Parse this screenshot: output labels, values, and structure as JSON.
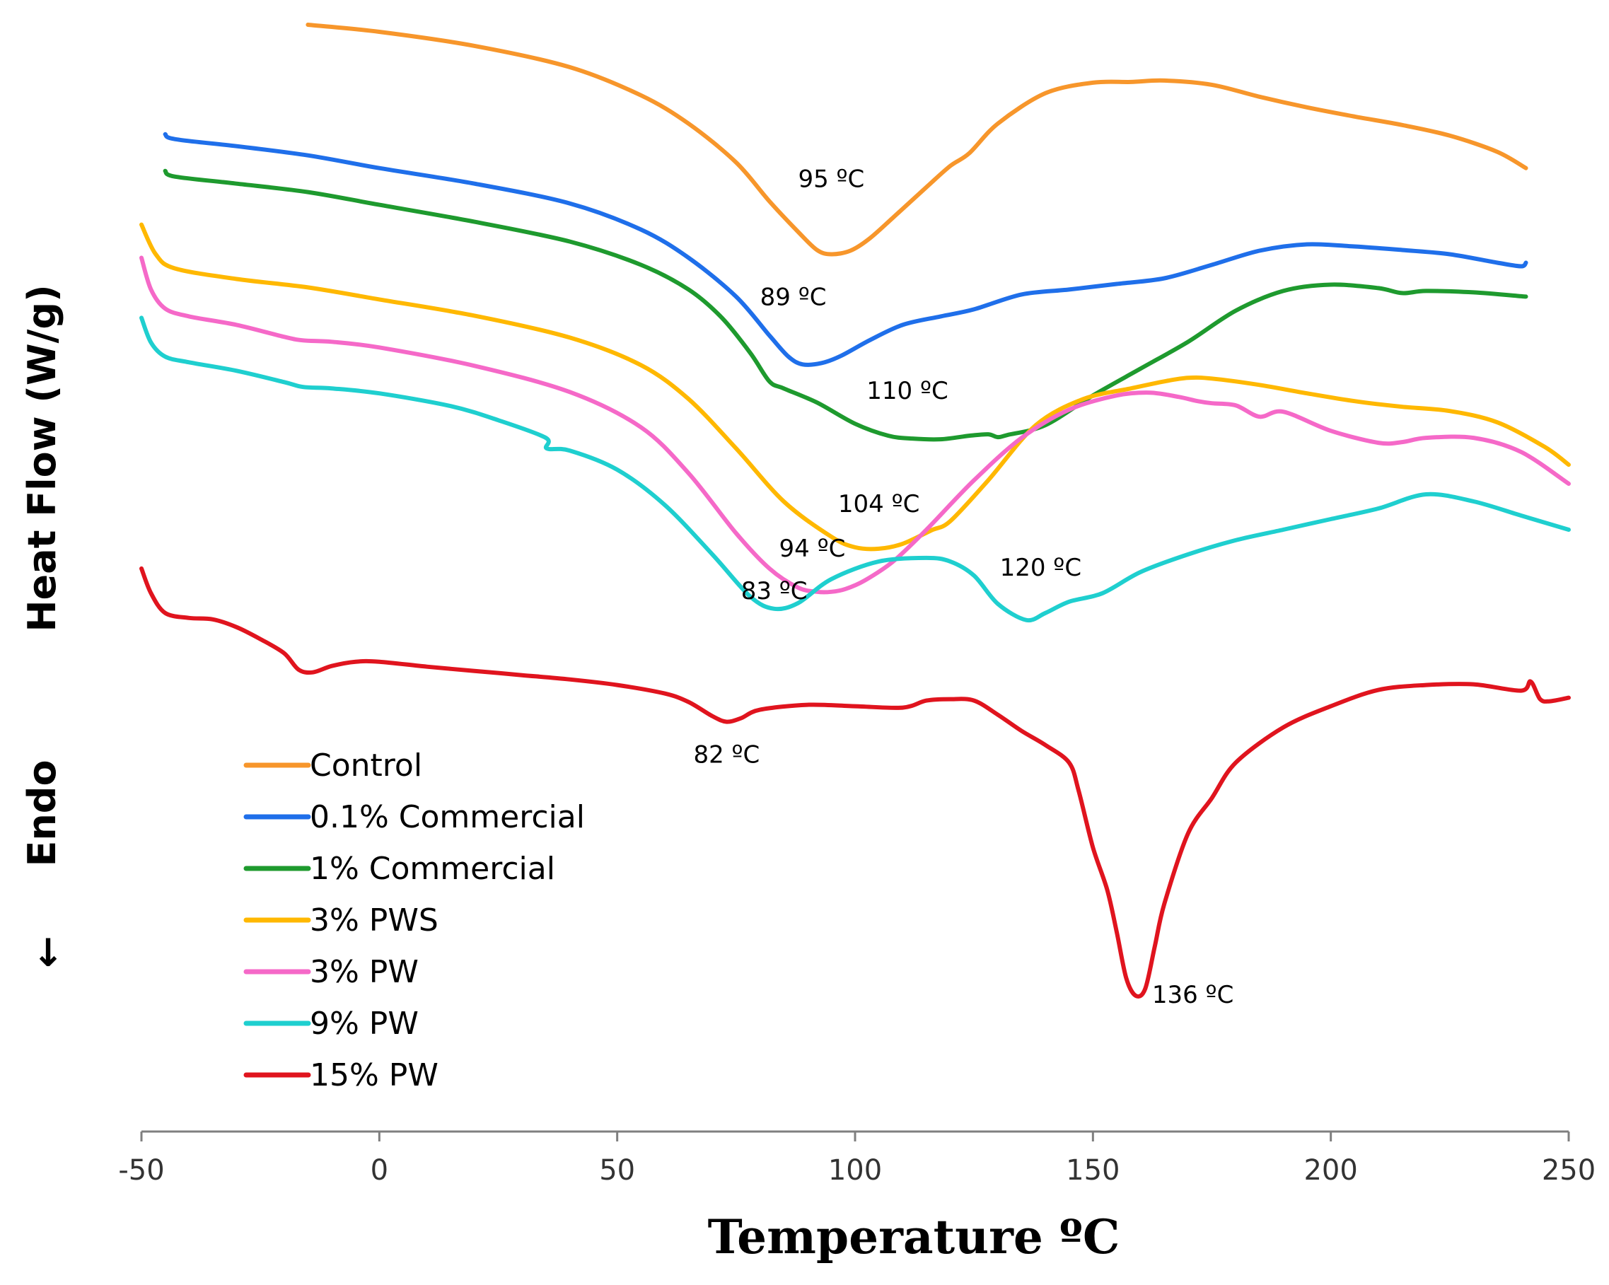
{
  "chart_data": {
    "type": "line",
    "title": "",
    "xlabel": "Temperature ºC",
    "ylabel": "Heat Flow (W/g)",
    "endo_label": "Endo",
    "endo_arrow": "↓",
    "xlim": [
      -50,
      250
    ],
    "x_ticks": [
      -50,
      0,
      50,
      100,
      150,
      200,
      250
    ],
    "y_ticks_shown": false,
    "legend_position": "bottom-left",
    "series": [
      {
        "name": "Control",
        "color": "#F7962B",
        "x": [
          -15,
          0,
          20,
          40,
          55,
          65,
          75,
          82,
          88,
          92,
          95,
          99,
          103,
          108,
          115,
          120,
          124,
          130,
          140,
          150,
          158,
          165,
          175,
          185,
          195,
          205,
          215,
          225,
          235,
          241
        ],
        "y": [
          98.5,
          97.5,
          95.5,
          92.5,
          88.5,
          84.5,
          79,
          73.5,
          69.2,
          66.6,
          66.0,
          66.5,
          68.2,
          71.2,
          75.5,
          78.5,
          80.3,
          84.5,
          88.8,
          90.3,
          90.4,
          90.6,
          90.0,
          88.3,
          86.8,
          85.5,
          84.3,
          82.8,
          80.5,
          78.2
        ]
      },
      {
        "name": "0.1% Commercial",
        "color": "#1F6FEA",
        "x": [
          -45,
          -43,
          -30,
          -15,
          0,
          20,
          40,
          55,
          65,
          75,
          82,
          86,
          89,
          93,
          97,
          103,
          110,
          118,
          125,
          135,
          145,
          155,
          165,
          175,
          185,
          195,
          205,
          215,
          225,
          235,
          240,
          241
        ],
        "y": [
          83.0,
          82.3,
          81.3,
          80.0,
          78.2,
          76.0,
          73.2,
          69.5,
          65.5,
          60.0,
          54.5,
          51.5,
          50.4,
          50.6,
          51.6,
          53.8,
          56.0,
          57.2,
          58.2,
          60.3,
          61.0,
          61.8,
          62.6,
          64.5,
          66.5,
          67.4,
          67.1,
          66.6,
          66.0,
          64.8,
          64.3,
          64.8
        ]
      },
      {
        "name": "1% Commercial",
        "color": "#1E9A2E",
        "x": [
          -45,
          -43,
          -30,
          -15,
          0,
          20,
          40,
          55,
          65,
          72,
          78,
          82,
          85,
          92,
          100,
          107,
          112,
          118,
          124,
          128,
          130,
          132,
          140,
          150,
          160,
          170,
          180,
          190,
          200,
          210,
          215,
          220,
          230,
          241
        ],
        "y": [
          77.8,
          77.0,
          76.0,
          74.8,
          73.0,
          70.6,
          67.8,
          64.5,
          61.0,
          57.0,
          52.0,
          48.0,
          47.0,
          45.0,
          42.0,
          40.3,
          39.9,
          39.8,
          40.3,
          40.5,
          40.1,
          40.4,
          41.8,
          46.0,
          49.8,
          53.6,
          58.0,
          60.8,
          61.7,
          61.2,
          60.5,
          60.8,
          60.6,
          60.0
        ]
      },
      {
        "name": "3% PWS",
        "color": "#FFB800",
        "x": [
          -50,
          -47,
          -43,
          -30,
          -15,
          0,
          20,
          40,
          55,
          65,
          75,
          85,
          95,
          100,
          105,
          110,
          116,
          120,
          128,
          138,
          148,
          158,
          165,
          170,
          175,
          185,
          195,
          205,
          215,
          225,
          235,
          245,
          250
        ],
        "y": [
          70.2,
          66.0,
          64.0,
          62.5,
          61.3,
          59.6,
          57.3,
          54.2,
          50.3,
          45.5,
          38.5,
          31.0,
          26.0,
          24.5,
          24.3,
          25.0,
          26.9,
          28.2,
          34.0,
          41.8,
          45.5,
          47.0,
          48.0,
          48.5,
          48.4,
          47.5,
          46.3,
          45.2,
          44.4,
          43.8,
          42.2,
          38.7,
          36.2
        ]
      },
      {
        "name": "3% PW",
        "color": "#F569C8",
        "x": [
          -50,
          -48,
          -45,
          -40,
          -30,
          -20,
          -16,
          -10,
          0,
          20,
          40,
          55,
          65,
          75,
          82,
          88,
          92,
          95,
          98,
          102,
          108,
          115,
          125,
          135,
          145,
          155,
          162,
          168,
          172,
          175,
          180,
          185,
          190,
          200,
          210,
          215,
          220,
          230,
          240,
          250
        ],
        "y": [
          65.5,
          61.0,
          58.3,
          57.2,
          56.0,
          54.3,
          53.8,
          53.6,
          52.8,
          50.2,
          46.5,
          41.5,
          35.0,
          26.5,
          21.5,
          18.8,
          18.2,
          18.2,
          18.6,
          19.8,
          22.5,
          27.0,
          34.0,
          40.0,
          44.0,
          46.0,
          46.4,
          45.8,
          45.2,
          44.9,
          44.6,
          43.0,
          43.7,
          41.0,
          39.3,
          39.4,
          40.0,
          40.0,
          38.0,
          33.5
        ]
      },
      {
        "name": "9% PW",
        "color": "#1FCFCF",
        "x": [
          -50,
          -48,
          -45,
          -40,
          -30,
          -20,
          -16,
          -10,
          0,
          15,
          25,
          35,
          35.2,
          40,
          50,
          60,
          70,
          78,
          83,
          88,
          95,
          105,
          115,
          120,
          125,
          130,
          136,
          140,
          145,
          152,
          160,
          170,
          180,
          190,
          200,
          210,
          220,
          230,
          240,
          250
        ],
        "y": [
          57.0,
          53.5,
          51.5,
          50.7,
          49.5,
          47.9,
          47.2,
          47.0,
          46.3,
          44.5,
          42.5,
          40.0,
          38.5,
          38.2,
          35.5,
          30.5,
          23.5,
          17.5,
          15.8,
          16.6,
          20.0,
          22.5,
          23.0,
          22.5,
          20.5,
          16.5,
          14.2,
          15.2,
          16.8,
          18.0,
          21.0,
          23.5,
          25.5,
          27.0,
          28.5,
          30.0,
          32.0,
          31.0,
          29.0,
          27.0
        ]
      },
      {
        "name": "15% PW",
        "color": "#E0141E",
        "x": [
          -50,
          -48,
          -45,
          -40,
          -35,
          -30,
          -25,
          -20,
          -17,
          -14,
          -10,
          -5,
          0,
          10,
          20,
          30,
          40,
          50,
          60,
          65,
          70,
          73,
          76,
          80,
          90,
          100,
          110,
          115,
          120,
          125,
          130,
          135,
          140,
          145,
          147,
          150,
          153,
          155,
          157,
          159,
          161,
          163,
          165,
          170,
          175,
          180,
          190,
          200,
          210,
          220,
          230,
          240,
          242,
          244,
          246,
          250
        ],
        "y": [
          21.5,
          18.0,
          15.2,
          14.5,
          14.3,
          13.2,
          11.5,
          9.5,
          7.2,
          6.8,
          7.7,
          8.3,
          8.3,
          7.6,
          7.0,
          6.4,
          5.8,
          5.0,
          3.8,
          2.6,
          0.6,
          -0.2,
          0.3,
          1.5,
          2.2,
          2.0,
          1.8,
          2.8,
          3.0,
          2.8,
          0.8,
          -1.5,
          -3.5,
          -6.0,
          -10.0,
          -18.0,
          -24.0,
          -30.0,
          -36.5,
          -39.0,
          -38.0,
          -32.0,
          -26.0,
          -16.0,
          -11.0,
          -6.0,
          -1.0,
          2.0,
          4.3,
          5.0,
          5.1,
          4.2,
          5.5,
          3.0,
          2.7,
          3.2
        ]
      }
    ],
    "annotations": [
      {
        "text": "95 ºC",
        "x": 95,
        "y": 75.5
      },
      {
        "text": "89 ºC",
        "x": 87,
        "y": 58.8
      },
      {
        "text": "110 ºC",
        "x": 111,
        "y": 45.5
      },
      {
        "text": "104 ºC",
        "x": 105,
        "y": 29.5
      },
      {
        "text": "94 ºC",
        "x": 91,
        "y": 23.2
      },
      {
        "text": "120 ºC",
        "x": 139,
        "y": 20.5
      },
      {
        "text": "83 ºC",
        "x": 83,
        "y": 17.2
      },
      {
        "text": "82 ºC",
        "x": 73,
        "y": -6.0
      },
      {
        "text": "136 ºC",
        "x": 171,
        "y": -40.0
      }
    ]
  }
}
